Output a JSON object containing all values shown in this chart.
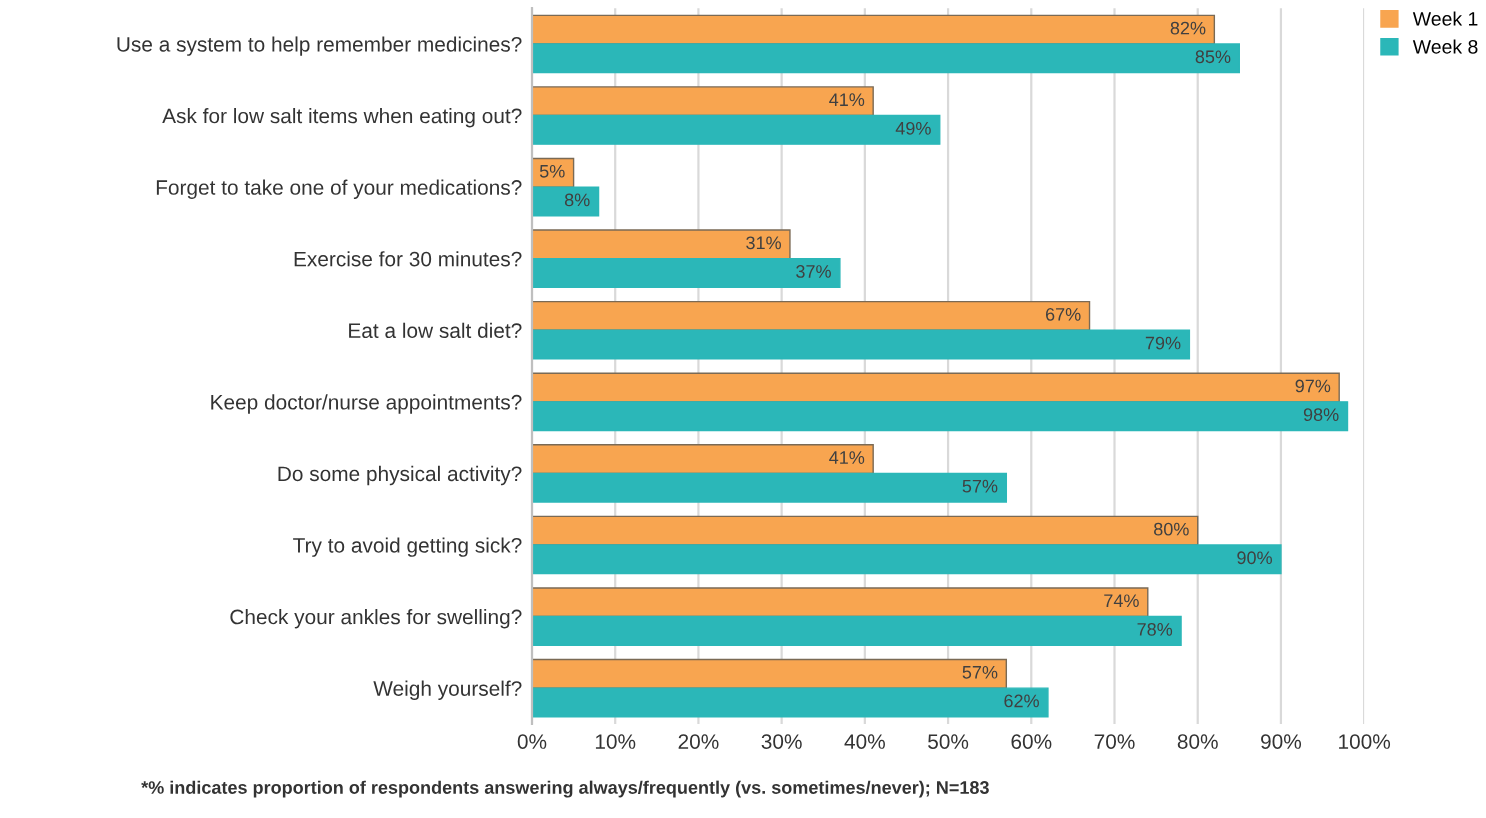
{
  "chart_data": {
    "type": "bar",
    "orientation": "horizontal",
    "categories": [
      "Use a system to help remember medicines?",
      "Ask for low salt items when eating out?",
      "Forget to take one of your medications?",
      "Exercise for 30 minutes?",
      "Eat a low salt diet?",
      "Keep doctor/nurse appointments?",
      "Do some physical activity?",
      "Try to avoid getting sick?",
      "Check your ankles for swelling?",
      "Weigh yourself?"
    ],
    "series": [
      {
        "name": "Week 1",
        "color": "#f8a550",
        "values": [
          82,
          41,
          5,
          31,
          67,
          97,
          41,
          80,
          74,
          57
        ],
        "value_labels": [
          "82%",
          "41%",
          "5%",
          "31%",
          "67%",
          "97%",
          "41%",
          "80%",
          "74%",
          "57%"
        ]
      },
      {
        "name": "Week 8",
        "color": "#2bb7b8",
        "values": [
          85,
          49,
          8,
          37,
          79,
          98,
          57,
          90,
          78,
          62
        ],
        "value_labels": [
          "85%",
          "49%",
          "8%",
          "37%",
          "79%",
          "98%",
          "57%",
          "90%",
          "78%",
          "62%"
        ]
      }
    ],
    "xlim": [
      0,
      100
    ],
    "xticks": [
      {
        "value": 0,
        "label": "0%"
      },
      {
        "value": 10,
        "label": "10%"
      },
      {
        "value": 20,
        "label": "20%"
      },
      {
        "value": 30,
        "label": "30%"
      },
      {
        "value": 40,
        "label": "40%"
      },
      {
        "value": 50,
        "label": "50%"
      },
      {
        "value": 60,
        "label": "60%"
      },
      {
        "value": 70,
        "label": "70%"
      },
      {
        "value": 80,
        "label": "80%"
      },
      {
        "value": 90,
        "label": "90%"
      },
      {
        "value": 100,
        "label": "100%"
      }
    ],
    "grid": "x",
    "legend": "top right",
    "annotations": [
      "*% indicates proportion of respondents answering always/frequently (vs. sometimes/never); N=183"
    ]
  }
}
